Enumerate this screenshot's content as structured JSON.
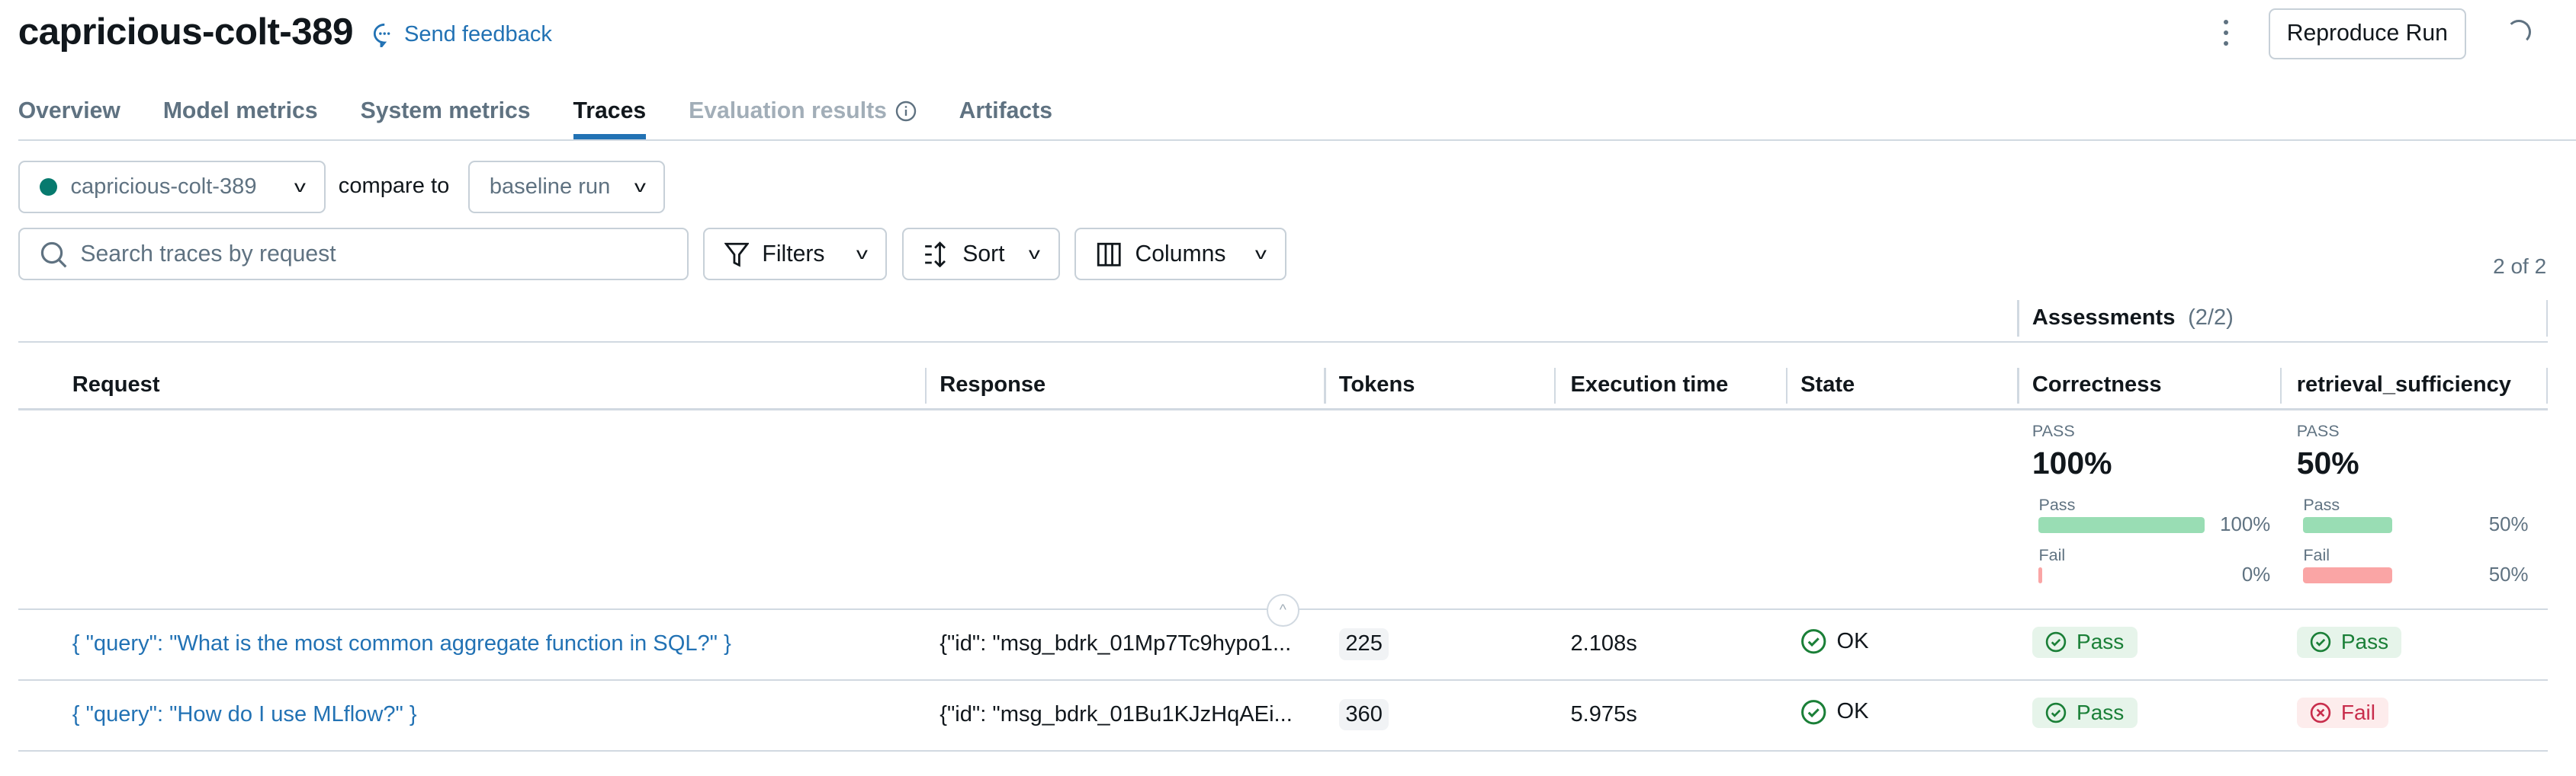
{
  "header": {
    "title": "capricious-colt-389",
    "feedback_label": "Send feedback",
    "reproduce_label": "Reproduce Run"
  },
  "tabs": [
    {
      "label": "Overview"
    },
    {
      "label": "Model metrics"
    },
    {
      "label": "System metrics"
    },
    {
      "label": "Traces",
      "active": true
    },
    {
      "label": "Evaluation results",
      "disabled": true
    },
    {
      "label": "Artifacts"
    }
  ],
  "toolbar": {
    "run_selector": "capricious-colt-389",
    "run_color": "#077a6e",
    "compare_label": "compare to",
    "compare_selector": "baseline run",
    "search_placeholder": "Search traces by request",
    "filters_label": "Filters",
    "sort_label": "Sort",
    "columns_label": "Columns",
    "count": "2 of 2"
  },
  "table": {
    "group_header": "Assessments",
    "group_count": "(2/2)",
    "columns": [
      "Request",
      "Response",
      "Tokens",
      "Execution time",
      "State",
      "Correctness",
      "retrieval_sufficiency"
    ],
    "summary": [
      {
        "label": "PASS",
        "value": "100%",
        "pass_label": "Pass",
        "pass_pct": 100,
        "pass_text": "100%",
        "fail_label": "Fail",
        "fail_pct": 0,
        "fail_text": "0%"
      },
      {
        "label": "PASS",
        "value": "50%",
        "pass_label": "Pass",
        "pass_pct": 50,
        "pass_text": "50%",
        "fail_label": "Fail",
        "fail_pct": 50,
        "fail_text": "50%"
      }
    ],
    "rows": [
      {
        "request": "{ \"query\": \"What is the most common aggregate function in SQL?\" }",
        "response": "{\"id\": \"msg_bdrk_01Mp7Tc9hypo1...",
        "tokens": "225",
        "time": "2.108s",
        "state": "OK",
        "correctness": "Pass",
        "retrieval": "Pass"
      },
      {
        "request": "{ \"query\": \"How do I use MLflow?\" }",
        "response": "{\"id\": \"msg_bdrk_01Bu1KJzHqAEi...",
        "tokens": "360",
        "time": "5.975s",
        "state": "OK",
        "correctness": "Pass",
        "retrieval": "Fail"
      }
    ]
  },
  "colors": {
    "accent": "#2272b4",
    "pass_bar": "#99ddb4",
    "fail_bar": "#faa5a5"
  }
}
